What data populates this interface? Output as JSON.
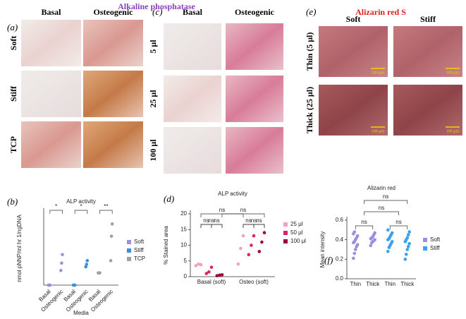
{
  "figure": {
    "titles": [
      "Alkaline phosphatase",
      "Alizarin red S"
    ],
    "panels": [
      "(a)",
      "(b)",
      "(c)",
      "(d)",
      "(e)",
      "(f)"
    ],
    "a": {
      "cols": [
        "Basal",
        "Osteogenic"
      ],
      "rows": [
        "Soft",
        "Stiff",
        "TCP"
      ]
    },
    "c": {
      "cols": [
        "Basal",
        "Osteogenic"
      ],
      "rows": [
        "5 μl",
        "25 μl",
        "100 μl"
      ]
    },
    "e": {
      "cols": [
        "Soft",
        "Stiff"
      ],
      "rows": [
        "Thin (5 μl)",
        "Thick (25 μl)"
      ],
      "scale_bar": "100 μm"
    }
  },
  "chart_data": [
    {
      "type": "dot",
      "title": "ALP activity",
      "y_label": "nmol pNNP/ml hr 1/ngDNA",
      "x_label": "Media",
      "categories": [
        "Basal",
        "Osteogenic",
        "Basal",
        "Osteogenic",
        "Basal",
        "Osteogenic"
      ],
      "ylim": [
        0,
        3
      ],
      "series": [
        {
          "name": "Soft",
          "color": "#9b8fe0",
          "values": [
            [
              0,
              0,
              0
            ],
            [
              0.6,
              0.9,
              1.25
            ],
            null,
            null,
            null,
            null
          ]
        },
        {
          "name": "Stiff",
          "color": "#3a8fe0",
          "values": [
            null,
            null,
            [
              0,
              0,
              0
            ],
            [
              0.75,
              0.85,
              1.0
            ],
            null,
            null
          ]
        },
        {
          "name": "TCP",
          "color": "#a0a0a0",
          "values": [
            null,
            null,
            null,
            null,
            [
              0.5,
              0.5,
              0.5
            ],
            [
              1.0,
              2.0,
              2.5
            ]
          ]
        }
      ],
      "annotations": [
        "*",
        "*",
        "**"
      ],
      "legend": "right"
    },
    {
      "type": "dot",
      "title": "ALP activity",
      "y_label": "% Stained area",
      "categories": [
        "Basal (soft)",
        "Osteo (soft)"
      ],
      "ylim": [
        0,
        20
      ],
      "yticks": [
        0,
        5,
        10,
        15,
        20
      ],
      "series": [
        {
          "name": "25 μl",
          "color": "#f4a0c0",
          "values": [
            [
              3.5,
              4,
              3.8
            ],
            [
              4,
              9,
              13
            ]
          ]
        },
        {
          "name": "50 μl",
          "color": "#e0206a",
          "values": [
            [
              1,
              1.5,
              3
            ],
            [
              7,
              10,
              13
            ]
          ]
        },
        {
          "name": "100 μl",
          "color": "#a0003a",
          "values": [
            [
              0.3,
              0.5,
              0.6
            ],
            [
              8,
              11,
              14
            ]
          ]
        }
      ],
      "annotations": [
        "ns",
        "ns",
        "ns",
        "ns",
        "ns",
        "ns",
        "ns",
        "ns"
      ],
      "legend": "right"
    },
    {
      "type": "dot",
      "title": "Alizarin red",
      "y_label": "Mean intensity",
      "categories": [
        "Thin",
        "Thick",
        "Thin",
        "Thick"
      ],
      "ylim": [
        0,
        0.6
      ],
      "yticks": [
        {
          "value": 0,
          "label": "0.0"
        },
        {
          "value": 0.2,
          "label": "0.2"
        },
        {
          "value": 0.4,
          "label": "0.4"
        },
        {
          "value": 0.6,
          "label": "0.6"
        }
      ],
      "series": [
        {
          "name": "Soft",
          "color": "#9b8fe0",
          "values": [
            [
              0.21,
              0.26,
              0.3,
              0.33,
              0.35,
              0.37,
              0.38,
              0.4,
              0.42,
              0.44,
              0.46,
              0.48
            ],
            [
              0.34,
              0.37,
              0.38,
              0.39,
              0.4,
              0.41,
              0.42,
              0.43,
              0.45,
              0.47
            ],
            null,
            null
          ]
        },
        {
          "name": "Stiff",
          "color": "#3aa0f0",
          "values": [
            null,
            null,
            [
              0.28,
              0.32,
              0.34,
              0.36,
              0.38,
              0.4,
              0.41,
              0.43,
              0.45,
              0.47,
              0.5
            ],
            [
              0.2,
              0.25,
              0.3,
              0.33,
              0.36,
              0.38,
              0.4,
              0.42,
              0.45,
              0.48
            ]
          ]
        }
      ],
      "annotations": [
        "ns",
        "ns",
        "ns",
        "ns"
      ],
      "legend": "right"
    }
  ]
}
